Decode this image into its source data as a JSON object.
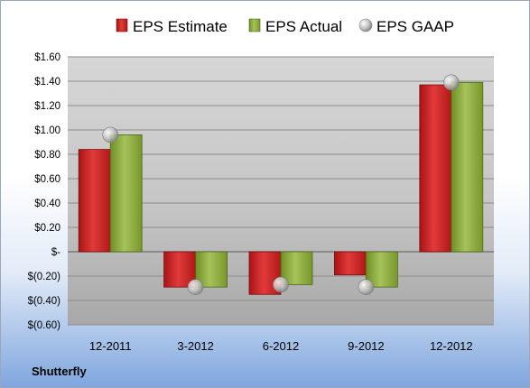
{
  "company": "Shutterfly",
  "colors": {
    "estimate": "#d42a2a",
    "actual": "#8fb13c",
    "gaap": "#b4b4b4",
    "plot_bg": "#c9c9c9"
  },
  "chart_data": {
    "type": "bar",
    "title": "",
    "xlabel": "",
    "ylabel": "",
    "legend_position": "top",
    "grid": true,
    "ylim": [
      -0.6,
      1.6
    ],
    "yticks": [
      1.6,
      1.4,
      1.2,
      1.0,
      0.8,
      0.6,
      0.4,
      0.2,
      0,
      -0.2,
      -0.4,
      -0.6
    ],
    "ytick_labels": [
      "$1.60",
      "$1.40",
      "$1.20",
      "$1.00",
      "$0.80",
      "$0.60",
      "$0.40",
      "$0.20",
      "$-",
      "$(0.20)",
      "$(0.40)",
      "$(0.60)"
    ],
    "categories": [
      "12-2011",
      "3-2012",
      "6-2012",
      "9-2012",
      "12-2012"
    ],
    "series": [
      {
        "name": "EPS Estimate",
        "kind": "bar",
        "values": [
          0.84,
          -0.29,
          -0.35,
          -0.19,
          1.37
        ]
      },
      {
        "name": "EPS Actual",
        "kind": "bar",
        "values": [
          0.96,
          -0.29,
          -0.27,
          -0.29,
          1.39
        ]
      },
      {
        "name": "EPS GAAP",
        "kind": "marker",
        "values": [
          0.96,
          -0.29,
          -0.27,
          -0.29,
          1.39
        ]
      }
    ]
  }
}
